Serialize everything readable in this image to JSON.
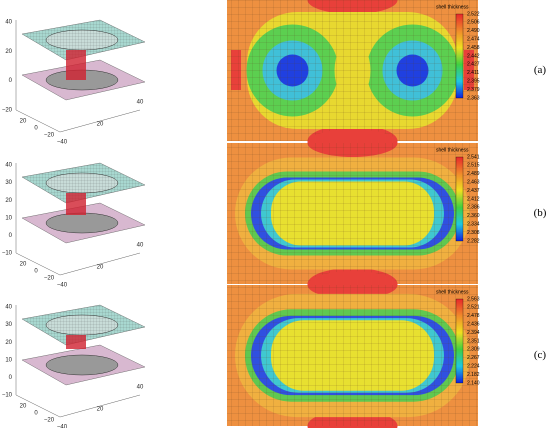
{
  "panels": [
    {
      "label": "(a)",
      "colorbar": {
        "title": "shell thickness",
        "ticks": [
          "2.522",
          "2.506",
          "2.490",
          "2.474",
          "2.458",
          "2.442",
          "2.427",
          "2.411",
          "2.395",
          "2.379",
          "2.363"
        ]
      },
      "plot3d": {
        "zticks": [
          "40",
          "20",
          "0",
          "−20"
        ],
        "xticks": [
          "−40",
          "−20",
          "0",
          "20"
        ],
        "yticks": [
          "20",
          "40"
        ]
      }
    },
    {
      "label": "(b)",
      "colorbar": {
        "title": "shell thickness",
        "ticks": [
          "2.541",
          "2.515",
          "2.489",
          "2.463",
          "2.437",
          "2.412",
          "2.386",
          "2.360",
          "2.334",
          "2.308",
          "2.282"
        ]
      },
      "plot3d": {
        "zticks": [
          "40",
          "30",
          "20",
          "10",
          "0",
          "−10"
        ],
        "xticks": [
          "−40",
          "−20",
          "0",
          "20"
        ],
        "yticks": [
          "20",
          "40"
        ]
      }
    },
    {
      "label": "(c)",
      "colorbar": {
        "title": "shell thickness",
        "ticks": [
          "2.563",
          "2.521",
          "2.478",
          "2.436",
          "2.394",
          "2.351",
          "2.309",
          "2.267",
          "2.224",
          "2.182",
          "2.140"
        ]
      },
      "plot3d": {
        "zticks": [
          "40",
          "30",
          "20",
          "10",
          "0",
          "−10"
        ],
        "xticks": [
          "−40",
          "−20",
          "0",
          "20"
        ],
        "yticks": [
          "20",
          "40"
        ]
      }
    }
  ]
}
